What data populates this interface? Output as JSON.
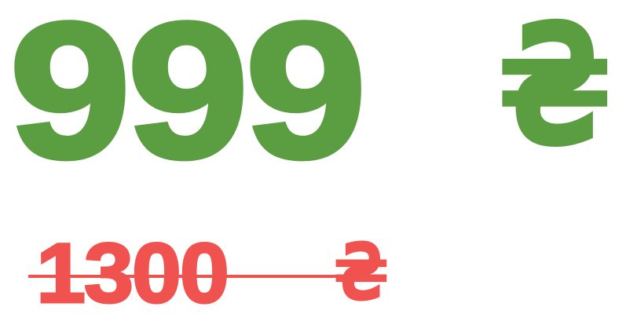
{
  "price": {
    "current_amount": "999",
    "currency_symbol": "₴",
    "old_amount": "1300"
  },
  "colors": {
    "current_price": "#5a9e41",
    "old_price": "#f0524f",
    "background": "#ffffff"
  }
}
